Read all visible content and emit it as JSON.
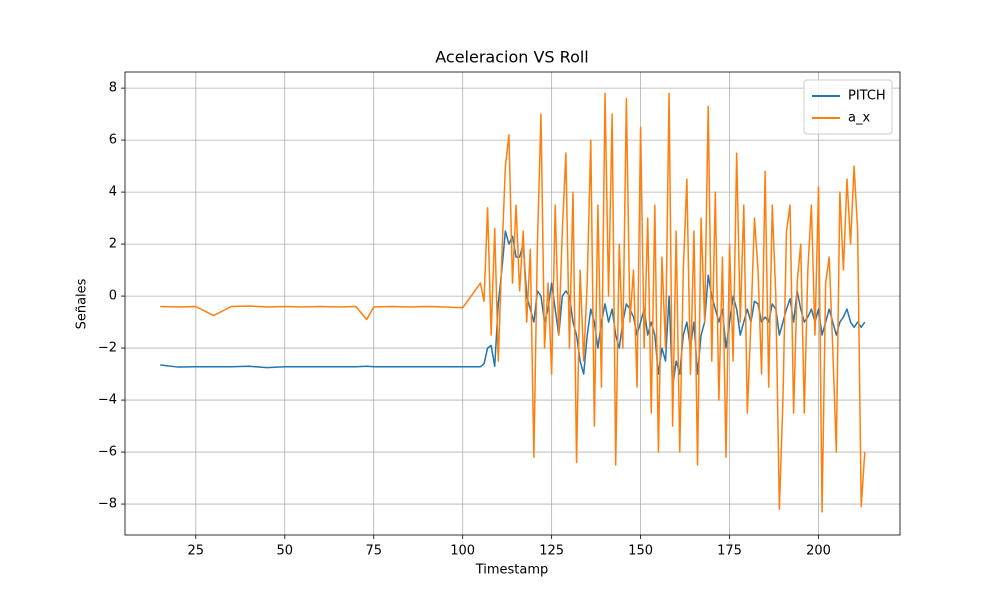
{
  "chart_data": {
    "type": "line",
    "title": "Aceleracion VS Roll",
    "xlabel": "Timestamp",
    "ylabel": "Señales",
    "x": [
      15,
      20,
      25,
      30,
      35,
      40,
      45,
      50,
      55,
      60,
      65,
      70,
      73,
      75,
      80,
      85,
      90,
      95,
      100,
      105,
      106,
      107,
      108,
      109,
      110,
      111,
      112,
      113,
      114,
      115,
      116,
      117,
      118,
      119,
      120,
      121,
      122,
      123,
      124,
      125,
      126,
      127,
      128,
      129,
      130,
      131,
      132,
      133,
      134,
      135,
      136,
      137,
      138,
      139,
      140,
      141,
      142,
      143,
      144,
      145,
      146,
      147,
      148,
      149,
      150,
      151,
      152,
      153,
      154,
      155,
      156,
      157,
      158,
      159,
      160,
      161,
      162,
      163,
      164,
      165,
      166,
      167,
      168,
      169,
      170,
      171,
      172,
      173,
      174,
      175,
      176,
      177,
      178,
      179,
      180,
      181,
      182,
      183,
      184,
      185,
      186,
      187,
      188,
      189,
      190,
      191,
      192,
      193,
      194,
      195,
      196,
      197,
      198,
      199,
      200,
      201,
      202,
      203,
      204,
      205,
      206,
      207,
      208,
      209,
      210,
      211,
      212,
      213
    ],
    "series": [
      {
        "name": "PITCH",
        "color": "#1f77b4",
        "values": [
          -2.65,
          -2.73,
          -2.72,
          -2.72,
          -2.72,
          -2.7,
          -2.75,
          -2.72,
          -2.72,
          -2.72,
          -2.72,
          -2.72,
          -2.7,
          -2.72,
          -2.72,
          -2.72,
          -2.72,
          -2.72,
          -2.72,
          -2.72,
          -2.6,
          -2.0,
          -1.9,
          -2.7,
          -0.3,
          1.0,
          2.5,
          2.0,
          2.3,
          1.5,
          1.5,
          2.0,
          0.0,
          -0.5,
          -1.0,
          0.2,
          0.0,
          -1.0,
          -0.5,
          0.5,
          -0.5,
          -1.5,
          0.0,
          0.2,
          0.0,
          -1.0,
          -1.5,
          -2.5,
          -3.0,
          -1.5,
          -0.5,
          -1.0,
          -2.0,
          -1.0,
          -0.3,
          -1.0,
          -0.5,
          -1.5,
          -2.0,
          -1.0,
          -0.3,
          -0.5,
          -0.8,
          -1.5,
          -1.0,
          -0.5,
          -1.5,
          -1.0,
          -1.5,
          -3.0,
          -2.0,
          -2.5,
          0.0,
          -3.5,
          -2.5,
          -3.0,
          -1.5,
          -1.0,
          -2.0,
          -1.0,
          -3.0,
          -1.5,
          -1.0,
          0.8,
          0.0,
          -0.5,
          -1.0,
          -0.5,
          -2.0,
          -1.0,
          0.0,
          -0.5,
          -1.5,
          -1.0,
          -0.5,
          -1.0,
          -0.2,
          -0.3,
          -1.0,
          -0.8,
          -1.0,
          -0.3,
          -0.5,
          -1.5,
          -1.0,
          -0.5,
          -0.1,
          -1.0,
          0.2,
          -0.5,
          -1.0,
          -0.8,
          -0.5,
          -1.0,
          -0.5,
          -1.5,
          -1.0,
          -0.5,
          -1.0,
          -1.5,
          -1.0,
          -0.8,
          -0.5,
          -1.0,
          -1.2,
          -1.0,
          -1.2,
          -1.0
        ]
      },
      {
        "name": "a_x",
        "color": "#ff7f0e",
        "values": [
          -0.4,
          -0.42,
          -0.4,
          -0.75,
          -0.4,
          -0.38,
          -0.42,
          -0.4,
          -0.42,
          -0.4,
          -0.42,
          -0.4,
          -0.9,
          -0.42,
          -0.4,
          -0.42,
          -0.4,
          -0.42,
          -0.45,
          0.5,
          -0.2,
          3.4,
          -1.5,
          2.6,
          -2.5,
          1.5,
          5.0,
          6.2,
          0.5,
          3.5,
          0.2,
          2.5,
          -1.0,
          1.8,
          -6.2,
          2.0,
          7.0,
          -2.0,
          0.5,
          -3.0,
          3.5,
          -1.5,
          2.5,
          5.5,
          -2.0,
          4.0,
          -6.4,
          1.0,
          -2.5,
          0.5,
          6.0,
          -5.0,
          3.5,
          -3.5,
          7.8,
          0.0,
          7.0,
          -6.5,
          2.0,
          -2.0,
          7.6,
          -1.0,
          1.0,
          -3.5,
          6.5,
          -2.0,
          3.0,
          -4.5,
          3.5,
          -6.0,
          1.5,
          -2.0,
          7.8,
          -5.0,
          2.5,
          -6.0,
          1.0,
          4.5,
          -3.0,
          2.5,
          -6.5,
          3.0,
          -1.0,
          7.3,
          -2.5,
          4.0,
          -4.0,
          1.5,
          -6.2,
          2.0,
          -2.5,
          5.5,
          -1.0,
          3.5,
          -4.5,
          -1.0,
          3.0,
          1.0,
          -3.0,
          4.8,
          -3.5,
          3.5,
          0.0,
          -8.2,
          -4.0,
          2.5,
          3.5,
          -4.5,
          0.5,
          2.0,
          -4.5,
          1.0,
          3.5,
          -1.5,
          4.2,
          -8.3,
          0.5,
          1.5,
          -2.0,
          -6.0,
          4.0,
          1.0,
          4.5,
          2.0,
          5.0,
          2.5,
          -8.1,
          -6.0
        ]
      }
    ],
    "xlim": [
      5.1,
      222.9
    ],
    "ylim": [
      -9.19,
      8.62
    ],
    "xticks": [
      25,
      50,
      75,
      100,
      125,
      150,
      175,
      200
    ],
    "yticks": [
      {
        "value": -8,
        "label": "−8"
      },
      {
        "value": -6,
        "label": "−6"
      },
      {
        "value": -4,
        "label": "−4"
      },
      {
        "value": -2,
        "label": "−2"
      },
      0,
      2,
      4,
      6,
      8
    ],
    "grid": true,
    "legend": "upper-right"
  }
}
